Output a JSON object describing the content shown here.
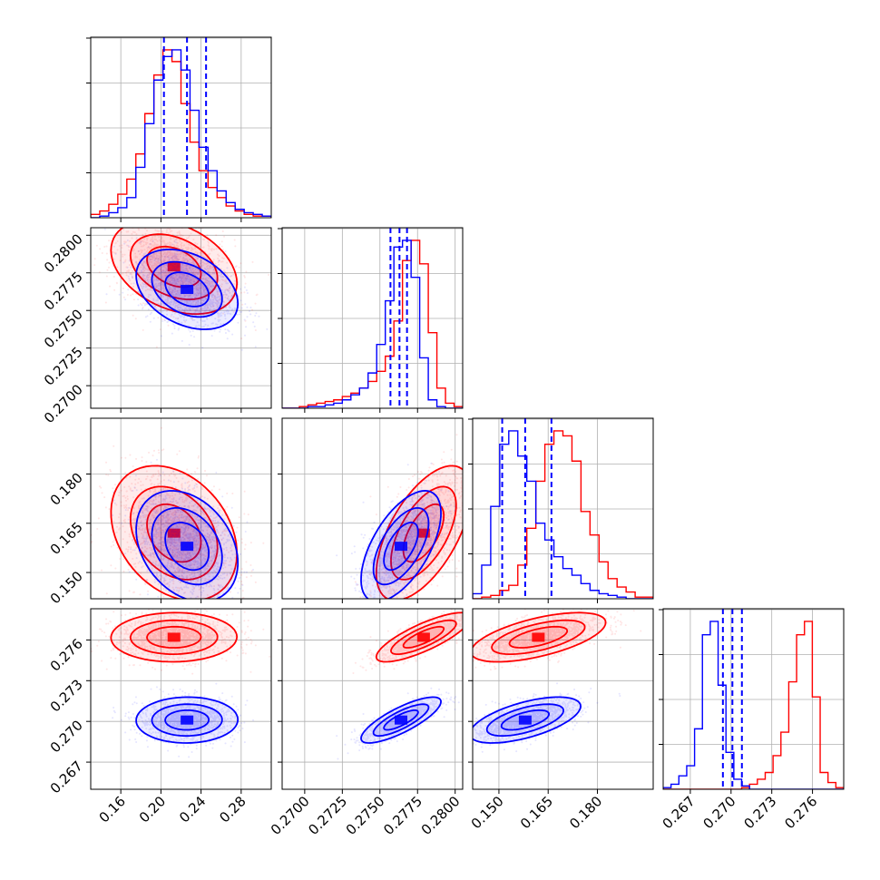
{
  "colors": {
    "series_a": "#ff0000",
    "series_b": "#0000ff",
    "grid": "#b0b0b0"
  },
  "chart_data": {
    "type": "corner",
    "grid": true,
    "parameters": [
      {
        "ticks": [
          0.16,
          0.2,
          0.24,
          0.28
        ],
        "labels": [
          "0.16",
          "0.20",
          "0.24",
          "0.28"
        ],
        "range": [
          0.13,
          0.31
        ]
      },
      {
        "ticks": [
          0.27,
          0.2725,
          0.275,
          0.2775,
          0.28
        ],
        "labels": [
          "0.2700",
          "0.2725",
          "0.2750",
          "0.2775",
          "0.2800"
        ],
        "range": [
          0.2685,
          0.2805
        ]
      },
      {
        "ticks": [
          0.15,
          0.165,
          0.18
        ],
        "labels": [
          "0.150",
          "0.165",
          "0.180"
        ],
        "range": [
          0.142,
          0.197
        ]
      },
      {
        "ticks": [
          0.267,
          0.27,
          0.273,
          0.276
        ],
        "labels": [
          "0.267",
          "0.270",
          "0.273",
          "0.276"
        ],
        "range": [
          0.265,
          0.2783
        ]
      }
    ],
    "series": [
      {
        "color": "#ff0000",
        "mean": [
          0.213,
          0.2779,
          0.162,
          0.2762
        ],
        "sd": [
          0.026,
          0.0013,
          0.0085,
          0.00075
        ],
        "hist1d": [
          [
            0.02,
            0.04,
            0.08,
            0.14,
            0.23,
            0.38,
            0.62,
            0.85,
            1.0,
            0.93,
            0.68,
            0.45,
            0.28,
            0.18,
            0.12,
            0.07,
            0.04,
            0.02,
            0.01,
            0.01
          ],
          [
            0.0,
            0.0,
            0.01,
            0.02,
            0.03,
            0.04,
            0.05,
            0.07,
            0.09,
            0.12,
            0.16,
            0.22,
            0.31,
            0.52,
            0.88,
            1.0,
            0.86,
            0.45,
            0.12,
            0.03,
            0.01
          ],
          [
            0.0,
            0.01,
            0.02,
            0.05,
            0.08,
            0.2,
            0.42,
            0.7,
            0.92,
            1.0,
            0.97,
            0.82,
            0.52,
            0.38,
            0.22,
            0.12,
            0.07,
            0.04,
            0.01,
            0.01
          ],
          [
            0.0,
            0.0,
            0.0,
            0.0,
            0.0,
            0.0,
            0.0,
            0.0,
            0.0,
            0.0,
            0.01,
            0.03,
            0.06,
            0.1,
            0.2,
            0.34,
            0.64,
            0.92,
            1.0,
            0.55,
            0.1,
            0.04,
            0.01
          ]
        ]
      },
      {
        "color": "#0000ff",
        "mean": [
          0.226,
          0.2764,
          0.158,
          0.2701
        ],
        "sd": [
          0.021,
          0.0011,
          0.007,
          0.0007
        ],
        "hist1d": [
          [
            0.0,
            0.01,
            0.03,
            0.06,
            0.12,
            0.3,
            0.56,
            0.82,
            0.96,
            1.0,
            0.88,
            0.64,
            0.42,
            0.28,
            0.16,
            0.09,
            0.05,
            0.03,
            0.02,
            0.01
          ],
          [
            0.0,
            0.0,
            0.0,
            0.01,
            0.01,
            0.02,
            0.03,
            0.05,
            0.08,
            0.12,
            0.21,
            0.38,
            0.64,
            0.96,
            1.0,
            0.78,
            0.3,
            0.05,
            0.01,
            0.0,
            0.0
          ],
          [
            0.03,
            0.2,
            0.55,
            0.92,
            1.0,
            0.85,
            0.7,
            0.45,
            0.35,
            0.25,
            0.18,
            0.14,
            0.09,
            0.05,
            0.03,
            0.02,
            0.01,
            0.0,
            0.0,
            0.0
          ],
          [
            0.01,
            0.03,
            0.08,
            0.14,
            0.36,
            0.92,
            1.0,
            0.62,
            0.22,
            0.06,
            0.02,
            0.0,
            0.0,
            0.0,
            0.0,
            0.0,
            0.0,
            0.0,
            0.0,
            0.0,
            0.0,
            0.0,
            0.0
          ]
        ]
      }
    ],
    "quantile_lines": [
      [
        0.203,
        0.226,
        0.245
      ],
      [
        0.2757,
        0.2763,
        0.2768
      ],
      [
        0.151,
        0.158,
        0.166
      ],
      [
        0.2694,
        0.2701,
        0.2708
      ]
    ]
  }
}
